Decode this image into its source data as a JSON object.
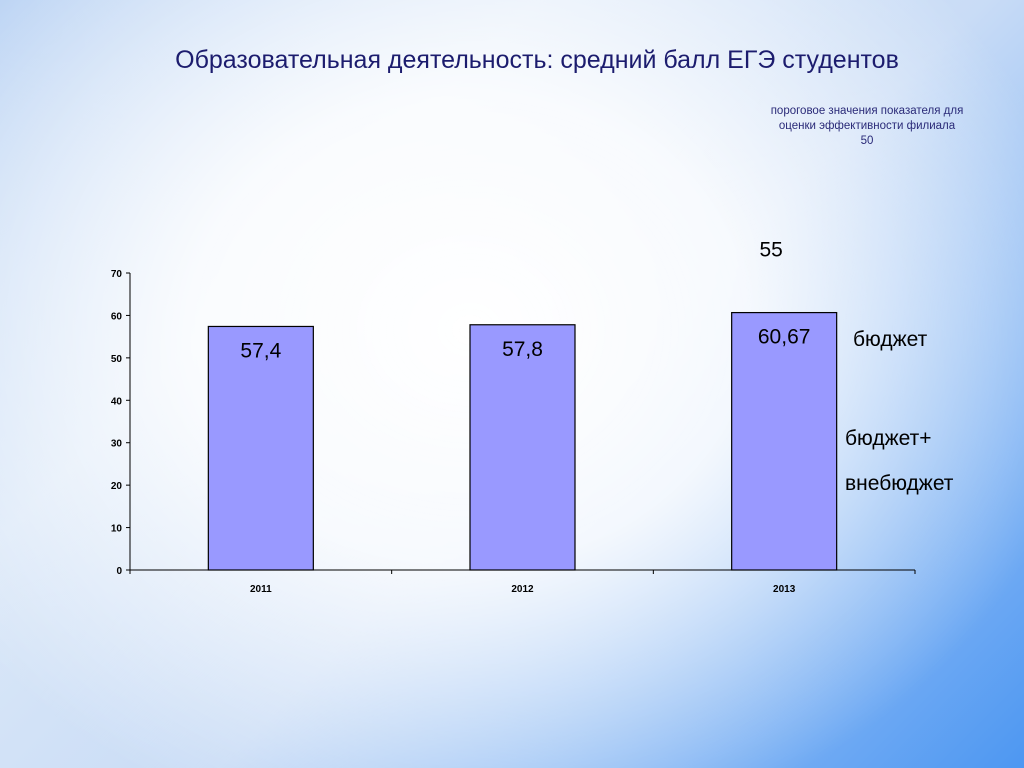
{
  "title": "Образовательная деятельность: средний балл ЕГЭ студентов",
  "threshold": {
    "line1": "пороговое значения показателя для",
    "line2": "оценки эффективности филиала",
    "value": "50"
  },
  "chart_data": {
    "type": "bar",
    "categories": [
      "2011",
      "2012",
      "2013"
    ],
    "values": [
      57.4,
      57.8,
      60.67
    ],
    "value_labels": [
      "57,4",
      "57,8",
      "60,67"
    ],
    "extra_value": 55,
    "extra_value_label": "55",
    "ylim": [
      0,
      70
    ],
    "yticks": [
      0,
      10,
      20,
      30,
      40,
      50,
      60,
      70
    ],
    "grid": false,
    "bar_color": "#9999ff",
    "bar_edge_color": "#000000",
    "xlabel": "",
    "ylabel": ""
  },
  "legend": {
    "budget": "бюджет",
    "budget_plus": "бюджет+",
    "extrabudget": "внебюджет"
  }
}
